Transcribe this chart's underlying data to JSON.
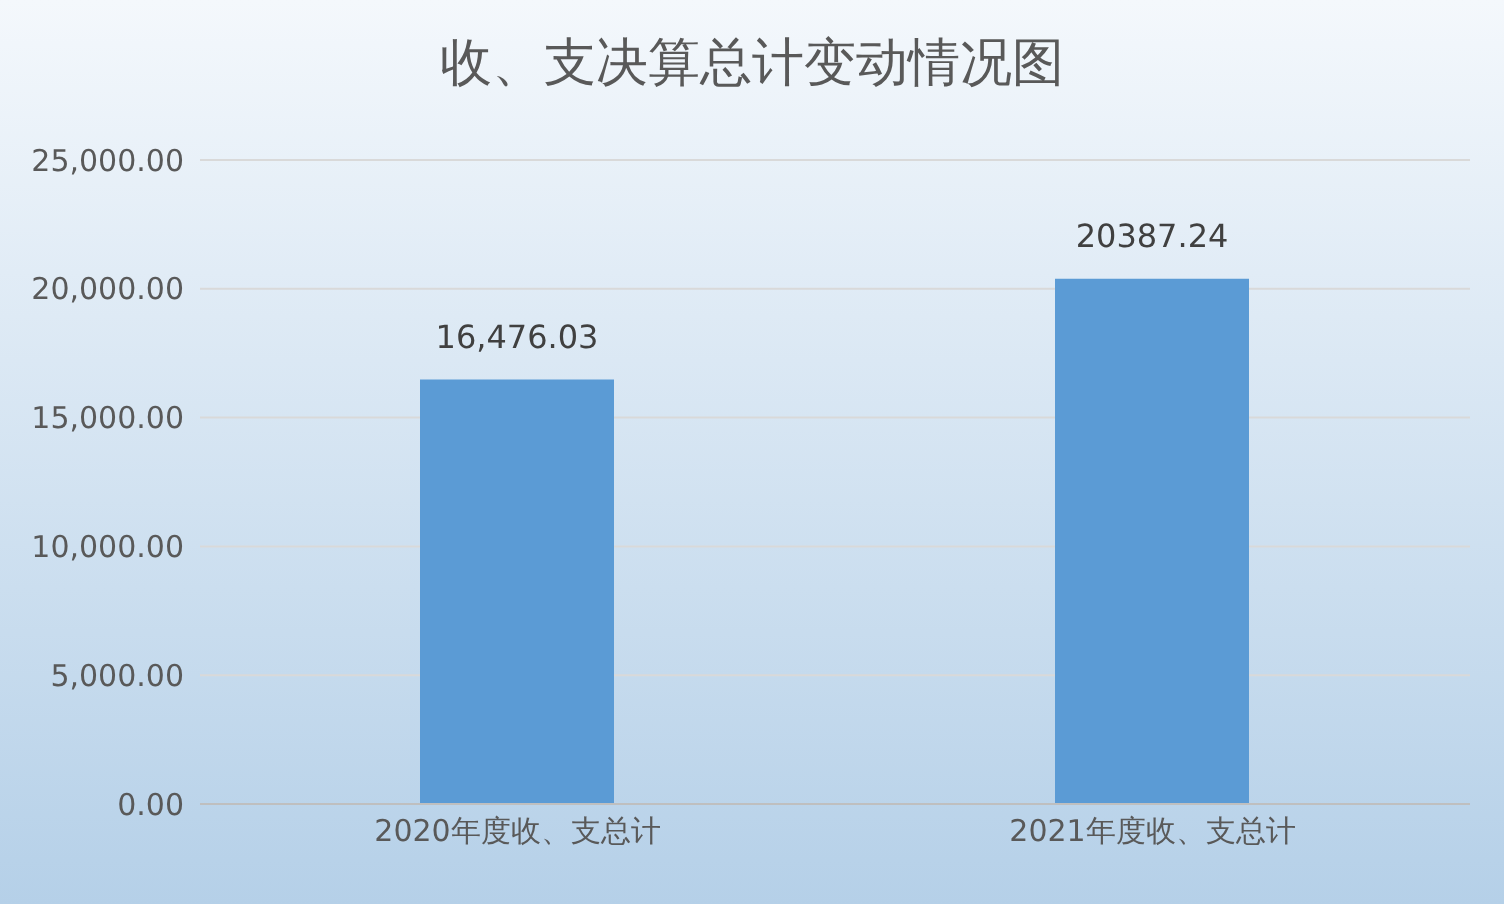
{
  "chart_data": {
    "type": "bar",
    "title": "收、支决算总计变动情况图",
    "categories": [
      "2020年度收、支总计",
      "2021年度收、支总计"
    ],
    "values": [
      16476.03,
      20387.24
    ],
    "value_labels": [
      "16,476.03",
      "20387.24"
    ],
    "color": "#5b9bd5",
    "ylim": [
      0,
      25000
    ],
    "yticks": [
      {
        "value": 0,
        "label": "0.00"
      },
      {
        "value": 5000,
        "label": "5,000.00"
      },
      {
        "value": 10000,
        "label": "10,000.00"
      },
      {
        "value": 15000,
        "label": "15,000.00"
      },
      {
        "value": 20000,
        "label": "20,000.00"
      },
      {
        "value": 25000,
        "label": "25,000.00"
      }
    ],
    "grid": "y",
    "legend": false
  }
}
